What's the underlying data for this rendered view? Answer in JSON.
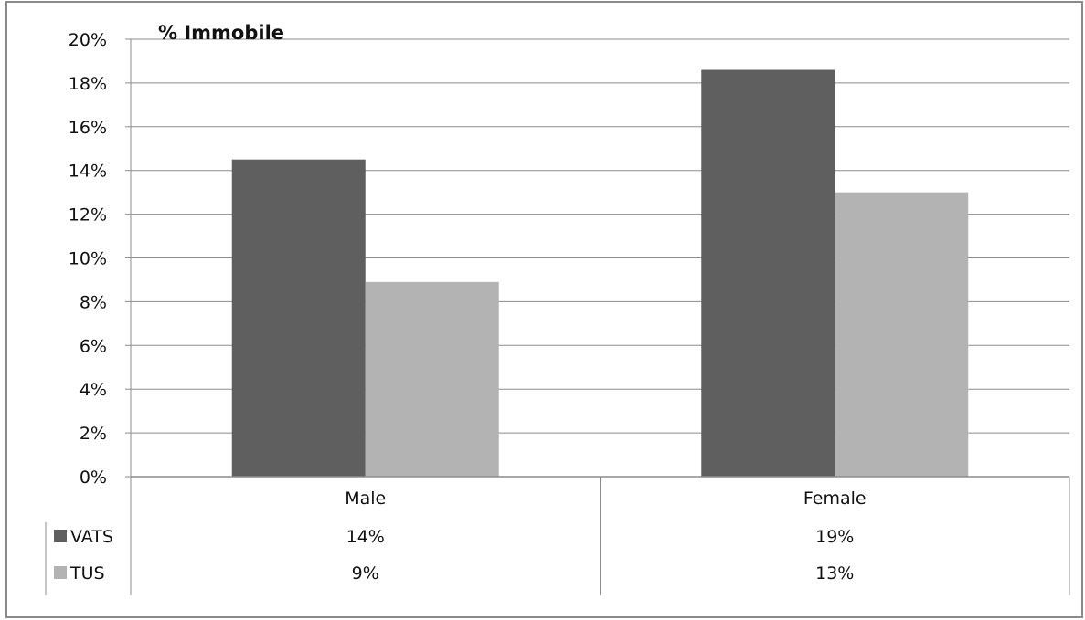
{
  "chart_data": {
    "type": "bar",
    "title": "% Immobile",
    "categories": [
      "Male",
      "Female"
    ],
    "series": [
      {
        "name": "VATS",
        "values": [
          14.5,
          18.6
        ],
        "data_labels": [
          "14%",
          "19%"
        ],
        "color": "#5f5f5f"
      },
      {
        "name": "TUS",
        "values": [
          8.9,
          13.0
        ],
        "data_labels": [
          "9%",
          "13%"
        ],
        "color": "#b3b3b3"
      }
    ],
    "ylim": [
      0,
      20
    ],
    "yticks": [
      0,
      2,
      4,
      6,
      8,
      10,
      12,
      14,
      16,
      18,
      20
    ],
    "ytick_labels": [
      "0%",
      "2%",
      "4%",
      "6%",
      "8%",
      "10%",
      "12%",
      "14%",
      "16%",
      "18%",
      "20%"
    ],
    "grid": true,
    "legend": "data-table"
  }
}
